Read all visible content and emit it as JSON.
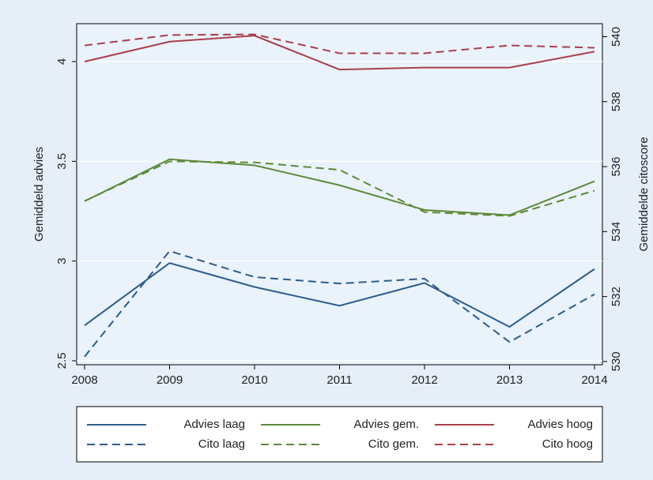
{
  "chart_data": {
    "type": "line",
    "x": [
      2008,
      2009,
      2010,
      2011,
      2012,
      2013,
      2014
    ],
    "xlim": [
      2008,
      2014
    ],
    "xticks": [
      2008,
      2009,
      2010,
      2011,
      2012,
      2013,
      2014
    ],
    "ylabel": "Gemiddeld advies",
    "y2label": "Gemiddelde citoscore",
    "ylim": [
      2.48,
      4.19
    ],
    "yticks": [
      2.5,
      3,
      3.5,
      4
    ],
    "y2lim": [
      529.9,
      540.4
    ],
    "y2ticks": [
      530,
      532,
      534,
      536,
      538,
      540
    ],
    "grid": true,
    "legend": "bottom",
    "series": [
      {
        "name": "Advies laag",
        "color": "#2d5b8a",
        "style": "solid",
        "values": [
          2.677,
          2.99,
          2.87,
          2.776,
          2.89,
          2.67,
          2.96
        ]
      },
      {
        "name": "Advies gem.",
        "color": "#5c8a3a",
        "style": "solid",
        "values": [
          3.3,
          3.51,
          3.48,
          3.38,
          3.256,
          3.23,
          3.4
        ]
      },
      {
        "name": "Advies hoog",
        "color": "#a8404a",
        "style": "solid",
        "values": [
          4.0,
          4.1,
          4.13,
          3.96,
          3.97,
          3.97,
          4.05
        ]
      },
      {
        "name": "Cito laag",
        "color": "#2d5b8a",
        "style": "dashed",
        "axis": "y2",
        "values": [
          530.15,
          533.4,
          532.6,
          532.4,
          532.55,
          530.6,
          532.07
        ]
      },
      {
        "name": "Cito gem.",
        "color": "#5c8a3a",
        "style": "dashed",
        "axis": "y2",
        "values": [
          534.94,
          536.16,
          536.13,
          535.9,
          534.6,
          534.48,
          535.26
        ]
      },
      {
        "name": "Cito hoog",
        "color": "#a8404a",
        "style": "dashed",
        "axis": "y2",
        "values": [
          539.73,
          540.05,
          540.07,
          539.49,
          539.49,
          539.73,
          539.66
        ]
      }
    ]
  }
}
